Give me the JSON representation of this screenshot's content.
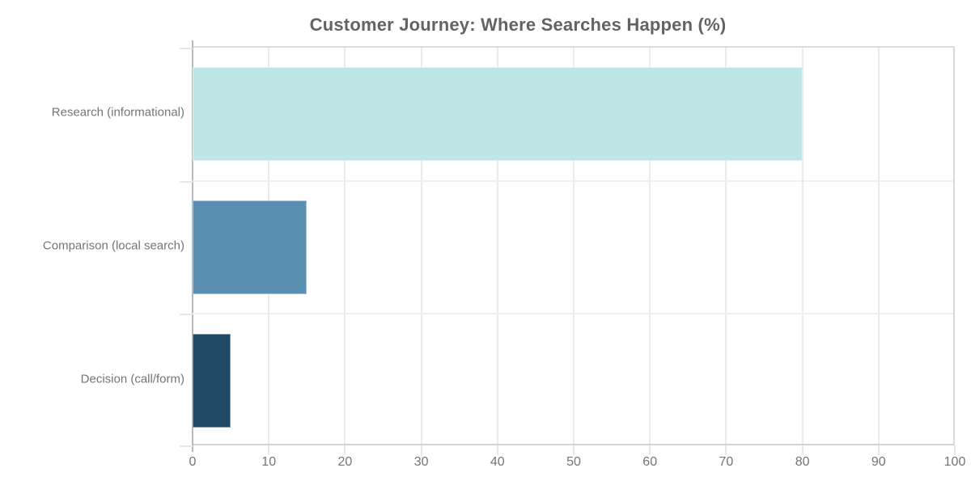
{
  "chart_data": {
    "type": "bar",
    "orientation": "horizontal",
    "title": "Customer Journey: Where Searches Happen (%)",
    "categories": [
      "Research (informational)",
      "Comparison (local search)",
      "Decision (call/form)"
    ],
    "values": [
      80,
      15,
      5
    ],
    "bar_colors": [
      "#bfe6e6",
      "#5b8fb2",
      "#1e4a66"
    ],
    "xlabel": "",
    "ylabel": "",
    "xlim": [
      0,
      100
    ],
    "xticks": [
      0,
      10,
      20,
      30,
      40,
      50,
      60,
      70,
      80,
      90,
      100
    ],
    "grid": "vertical gridlines at each x tick and horizontal gridlines at category boundaries",
    "legend": "none",
    "text_color": "#757575",
    "title_color": "#636363"
  }
}
